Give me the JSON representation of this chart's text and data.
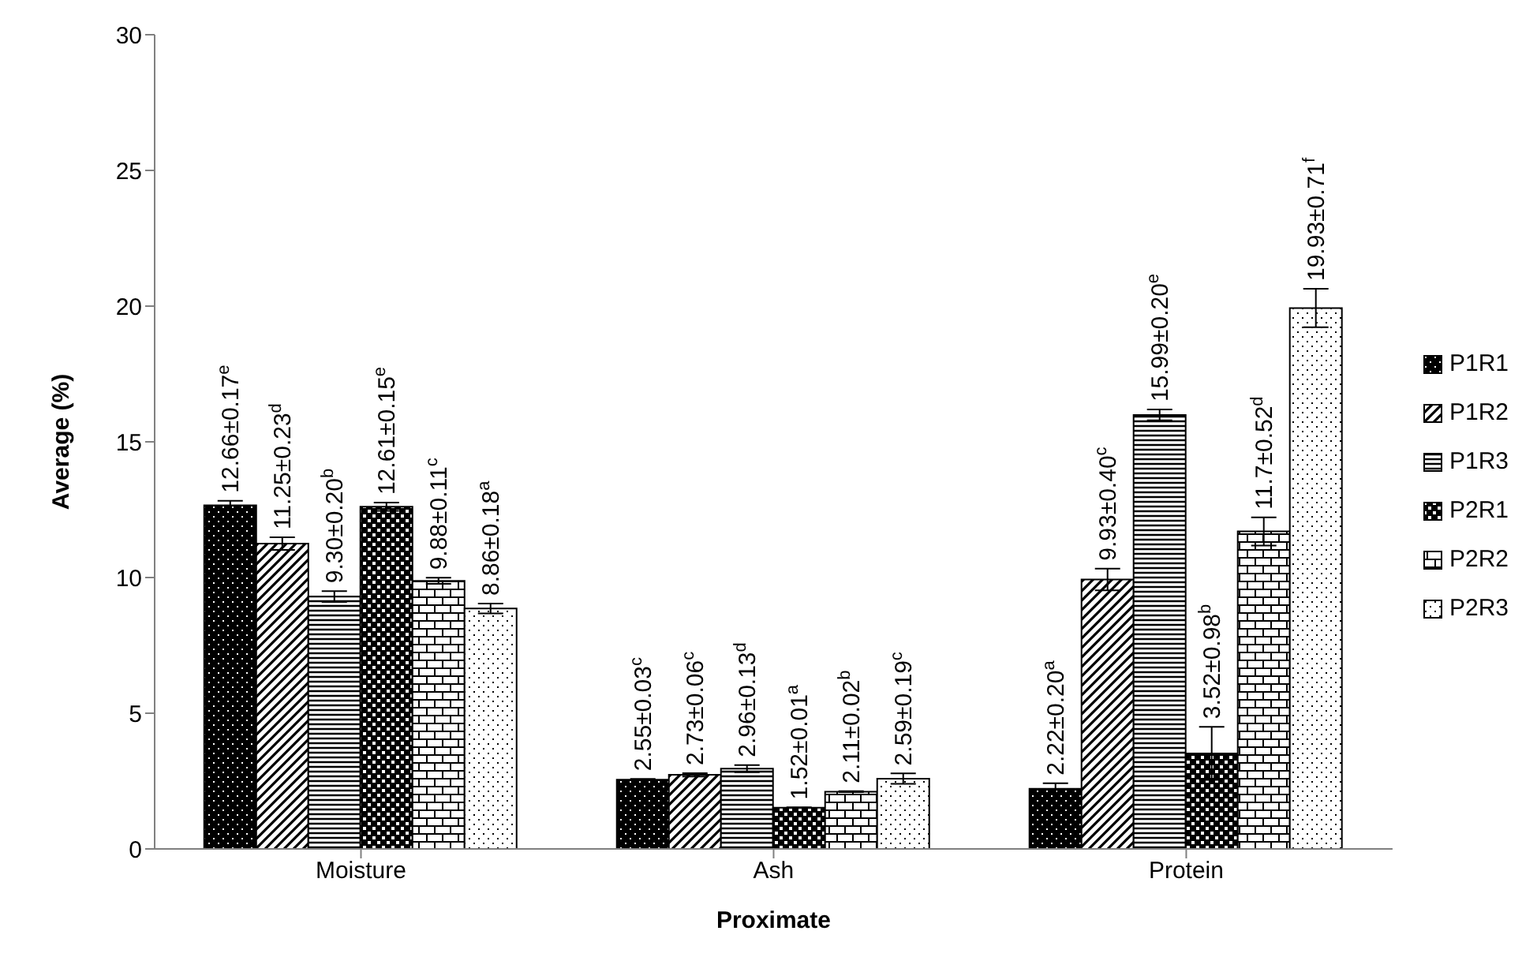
{
  "chart_data": {
    "type": "bar",
    "xlabel": "Proximate",
    "ylabel": "Average (%)",
    "categories": [
      "Moisture",
      "Ash",
      "Protein"
    ],
    "series": [
      {
        "name": "P1R1",
        "color": "#000000",
        "values": [
          12.66,
          2.55,
          2.22
        ],
        "errors": [
          0.17,
          0.03,
          0.2
        ],
        "value_labels": [
          "12.66±0.17$^{e}$",
          "2.55±0.03$^{c}$",
          "2.22±0.20$^{a}$"
        ]
      },
      {
        "name": "P1R2",
        "color": "#000000",
        "values": [
          11.25,
          2.73,
          9.93
        ],
        "errors": [
          0.23,
          0.06,
          0.4
        ],
        "value_labels": [
          "11.25±0.23$^{d}$",
          "2.73±0.06$^{c}$",
          "9.93±0.40$^{c}$"
        ]
      },
      {
        "name": "P1R3",
        "color": "#000000",
        "values": [
          9.3,
          2.96,
          15.99
        ],
        "errors": [
          0.2,
          0.13,
          0.2
        ],
        "value_labels": [
          "9.30±0.20$^{b}$",
          "2.96±0.13$^{d}$",
          "15.99±0.20$^{e}$"
        ]
      },
      {
        "name": "P2R1",
        "color": "#000000",
        "values": [
          12.61,
          1.52,
          3.52
        ],
        "errors": [
          0.15,
          0.01,
          0.98
        ],
        "value_labels": [
          "12.61±0.15$^{e}$",
          "1.52±0.01$^{a}$",
          "3.52±0.98$^{b}$"
        ]
      },
      {
        "name": "P2R2",
        "color": "#000000",
        "values": [
          9.88,
          2.11,
          11.7
        ],
        "errors": [
          0.11,
          0.02,
          0.52
        ],
        "value_labels": [
          "9.88±0.11$^{c}$",
          "2.11±0.02$^{b}$",
          "11.7±0.52$^{d}$"
        ]
      },
      {
        "name": "P2R3",
        "color": "#000000",
        "values": [
          8.86,
          2.59,
          19.93
        ],
        "errors": [
          0.18,
          0.19,
          0.71
        ],
        "value_labels": [
          "8.86±0.18$^{a}$",
          "2.59±0.19$^{c}$",
          "19.93±0.71$^{f}$"
        ]
      }
    ],
    "ylim": [
      0,
      30
    ],
    "yticks": [
      0,
      5,
      10,
      15,
      20,
      25,
      30
    ],
    "grid": false,
    "legend": "right"
  }
}
